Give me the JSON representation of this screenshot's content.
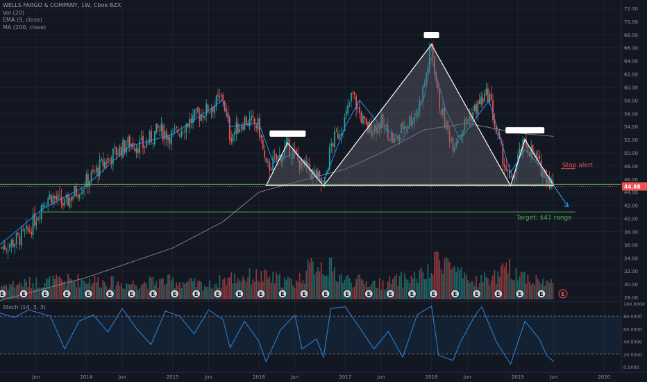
{
  "legend": {
    "title": "WELLS FARGO & COMPANY, 1W, Cboe BZX",
    "vol": "Vol (20)",
    "ema": "EMA (9, close)",
    "ma": "MA (200, close)"
  },
  "stoch_label": "Stoch (14, 3, 3)",
  "colors": {
    "background": "#131722",
    "up": "#26a69a",
    "down": "#ef5350",
    "ema": "#2196f3",
    "ma": "#9598a1",
    "pattern_fill": "#5d606b",
    "pattern_stroke": "#ffffff",
    "target_line": "#4caf50",
    "neckline": "#66bb6a",
    "stop_line": "#ef5350",
    "stoch": "#2a7fd4",
    "last_price_tag": "#ef5350"
  },
  "annotations": {
    "stop_alert": "Stop alert",
    "target": "Target: $41 range",
    "last_price": "44.88"
  },
  "earnings_marker": "E",
  "chart_data": {
    "type": "candlestick",
    "price_axis": {
      "ticks": [
        "72.00",
        "70.00",
        "68.00",
        "66.00",
        "64.00",
        "62.00",
        "60.00",
        "58.00",
        "56.00",
        "54.00",
        "52.00",
        "50.00",
        "48.00",
        "46.00",
        "44.00",
        "42.00",
        "40.00",
        "38.00",
        "36.00",
        "34.00",
        "32.00",
        "30.00",
        "28.00"
      ],
      "range": [
        27,
        73
      ]
    },
    "stoch_axis": {
      "ticks": [
        "100.0000",
        "80.0000",
        "60.0000",
        "40.0000",
        "20.0000",
        "0.0000"
      ],
      "range": [
        0,
        100
      ],
      "band": [
        20,
        80
      ]
    },
    "time_axis": {
      "labels": [
        "Jun",
        "2014",
        "Jun",
        "2015",
        "Jun",
        "2016",
        "Jun",
        "2017",
        "Jun",
        "2018",
        "Jun",
        "2019",
        "Jun",
        "2020"
      ]
    },
    "price_path": [
      [
        "2013-01",
        35.5
      ],
      [
        "2013-03",
        36.5
      ],
      [
        "2013-05",
        38.0
      ],
      [
        "2013-07",
        42.5
      ],
      [
        "2013-08",
        43.5
      ],
      [
        "2013-10",
        42.0
      ],
      [
        "2013-11",
        43.5
      ],
      [
        "2014-01",
        45.5
      ],
      [
        "2014-03",
        48.0
      ],
      [
        "2014-05",
        50.0
      ],
      [
        "2014-07",
        51.5
      ],
      [
        "2014-09",
        51.0
      ],
      [
        "2014-11",
        53.5
      ],
      [
        "2015-01",
        52.5
      ],
      [
        "2015-03",
        54.5
      ],
      [
        "2015-05",
        56.0
      ],
      [
        "2015-07",
        57.5
      ],
      [
        "2015-08",
        58.5
      ],
      [
        "2015-09",
        52.5
      ],
      [
        "2015-11",
        55.0
      ],
      [
        "2016-01",
        54.0
      ],
      [
        "2016-02",
        47.5
      ],
      [
        "2016-04",
        49.5
      ],
      [
        "2016-05",
        51.0
      ],
      [
        "2016-07",
        48.0
      ],
      [
        "2016-09",
        46.5
      ],
      [
        "2016-10",
        44.5
      ],
      [
        "2016-11",
        51.0
      ],
      [
        "2017-01",
        55.0
      ],
      [
        "2017-02",
        59.0
      ],
      [
        "2017-03",
        56.0
      ],
      [
        "2017-04",
        53.5
      ],
      [
        "2017-06",
        54.5
      ],
      [
        "2017-08",
        51.5
      ],
      [
        "2017-09",
        54.0
      ],
      [
        "2017-11",
        56.0
      ],
      [
        "2017-12",
        60.5
      ],
      [
        "2018-01",
        66.5
      ],
      [
        "2018-02",
        58.0
      ],
      [
        "2018-03",
        54.0
      ],
      [
        "2018-04",
        51.5
      ],
      [
        "2018-06",
        55.0
      ],
      [
        "2018-08",
        58.0
      ],
      [
        "2018-09",
        59.0
      ],
      [
        "2018-10",
        53.0
      ],
      [
        "2018-12",
        45.0
      ],
      [
        "2019-01",
        49.0
      ],
      [
        "2019-02",
        51.5
      ],
      [
        "2019-03",
        50.0
      ],
      [
        "2019-04",
        48.0
      ],
      [
        "2019-05",
        46.5
      ],
      [
        "2019-06",
        44.88
      ]
    ],
    "ema_9": [
      [
        "2013-01",
        36.0
      ],
      [
        "2013-07",
        41.5
      ],
      [
        "2014-01",
        45.0
      ],
      [
        "2014-07",
        51.0
      ],
      [
        "2015-01",
        52.8
      ],
      [
        "2015-08",
        58.0
      ],
      [
        "2015-09",
        54.0
      ],
      [
        "2016-01",
        54.5
      ],
      [
        "2016-03",
        48.5
      ],
      [
        "2016-06",
        50.0
      ],
      [
        "2016-10",
        45.5
      ],
      [
        "2017-01",
        54.0
      ],
      [
        "2017-03",
        58.0
      ],
      [
        "2017-06",
        54.0
      ],
      [
        "2017-09",
        52.0
      ],
      [
        "2017-12",
        58.5
      ],
      [
        "2018-01",
        64.5
      ],
      [
        "2018-03",
        56.5
      ],
      [
        "2018-05",
        52.0
      ],
      [
        "2018-09",
        58.0
      ],
      [
        "2018-12",
        47.0
      ],
      [
        "2019-02",
        50.5
      ],
      [
        "2019-06",
        45.5
      ]
    ],
    "ma_200": [
      [
        "2013-01",
        27.5
      ],
      [
        "2014-01",
        31.0
      ],
      [
        "2015-01",
        35.5
      ],
      [
        "2015-08",
        39.5
      ],
      [
        "2016-01",
        44.0
      ],
      [
        "2016-06",
        45.5
      ],
      [
        "2017-01",
        47.5
      ],
      [
        "2017-06",
        50.0
      ],
      [
        "2017-12",
        53.5
      ],
      [
        "2018-06",
        54.5
      ],
      [
        "2019-01",
        53.0
      ],
      [
        "2019-06",
        52.5
      ]
    ],
    "stoch": [
      [
        "2013-01",
        85
      ],
      [
        "2013-03",
        78
      ],
      [
        "2013-05",
        90
      ],
      [
        "2013-08",
        80
      ],
      [
        "2013-10",
        28
      ],
      [
        "2013-12",
        72
      ],
      [
        "2014-02",
        82
      ],
      [
        "2014-04",
        55
      ],
      [
        "2014-06",
        92
      ],
      [
        "2014-08",
        60
      ],
      [
        "2014-10",
        35
      ],
      [
        "2014-12",
        88
      ],
      [
        "2015-02",
        80
      ],
      [
        "2015-04",
        52
      ],
      [
        "2015-06",
        90
      ],
      [
        "2015-08",
        75
      ],
      [
        "2015-09",
        30
      ],
      [
        "2015-11",
        72
      ],
      [
        "2016-01",
        40
      ],
      [
        "2016-02",
        8
      ],
      [
        "2016-04",
        58
      ],
      [
        "2016-06",
        82
      ],
      [
        "2016-07",
        28
      ],
      [
        "2016-09",
        44
      ],
      [
        "2016-10",
        15
      ],
      [
        "2016-11",
        92
      ],
      [
        "2017-01",
        95
      ],
      [
        "2017-03",
        62
      ],
      [
        "2017-05",
        28
      ],
      [
        "2017-07",
        56
      ],
      [
        "2017-09",
        15
      ],
      [
        "2017-11",
        82
      ],
      [
        "2018-01",
        96
      ],
      [
        "2018-02",
        18
      ],
      [
        "2018-04",
        10
      ],
      [
        "2018-05",
        38
      ],
      [
        "2018-07",
        80
      ],
      [
        "2018-08",
        95
      ],
      [
        "2018-10",
        40
      ],
      [
        "2018-12",
        4
      ],
      [
        "2019-01",
        38
      ],
      [
        "2019-02",
        72
      ],
      [
        "2019-04",
        44
      ],
      [
        "2019-05",
        18
      ],
      [
        "2019-06",
        8
      ]
    ],
    "volume_path": [
      [
        "2013-01",
        18
      ],
      [
        "2013-06",
        22
      ],
      [
        "2014-01",
        26
      ],
      [
        "2014-06",
        20
      ],
      [
        "2015-01",
        24
      ],
      [
        "2015-06",
        18
      ],
      [
        "2015-09",
        28
      ],
      [
        "2016-01",
        30
      ],
      [
        "2016-06",
        22
      ],
      [
        "2016-09",
        48
      ],
      [
        "2016-11",
        40
      ],
      [
        "2017-01",
        26
      ],
      [
        "2017-06",
        20
      ],
      [
        "2018-01",
        34
      ],
      [
        "2018-02",
        60
      ],
      [
        "2018-06",
        22
      ],
      [
        "2018-10",
        30
      ],
      [
        "2018-12",
        40
      ],
      [
        "2019-03",
        26
      ],
      [
        "2019-06",
        20
      ]
    ],
    "pattern": {
      "left_shoulder": {
        "start": [
          "2016-02",
          45
        ],
        "peak": [
          "2016-05",
          51.5
        ],
        "end": [
          "2016-10",
          45
        ]
      },
      "head": {
        "start": [
          "2016-10",
          45
        ],
        "peak": [
          "2018-01",
          66.5
        ],
        "end": [
          "2018-12",
          45
        ]
      },
      "right_shoulder": {
        "start": [
          "2018-12",
          45
        ],
        "peak": [
          "2019-02",
          52
        ],
        "end": [
          "2019-06",
          45
        ]
      },
      "neckline": 45.2,
      "target": 41.0,
      "stop": 47.6,
      "projection": [
        [
          "2019-06",
          45
        ],
        [
          "2019-08",
          41.8
        ]
      ]
    },
    "earnings_months": [
      "2013-01",
      "2013-04",
      "2013-07",
      "2013-10",
      "2014-01",
      "2014-04",
      "2014-07",
      "2014-10",
      "2015-01",
      "2015-04",
      "2015-07",
      "2015-10",
      "2016-01",
      "2016-04",
      "2016-07",
      "2016-10",
      "2017-01",
      "2017-04",
      "2017-07",
      "2017-10",
      "2018-01",
      "2018-04",
      "2018-07",
      "2018-10",
      "2019-01",
      "2019-04",
      "2019-07"
    ]
  }
}
